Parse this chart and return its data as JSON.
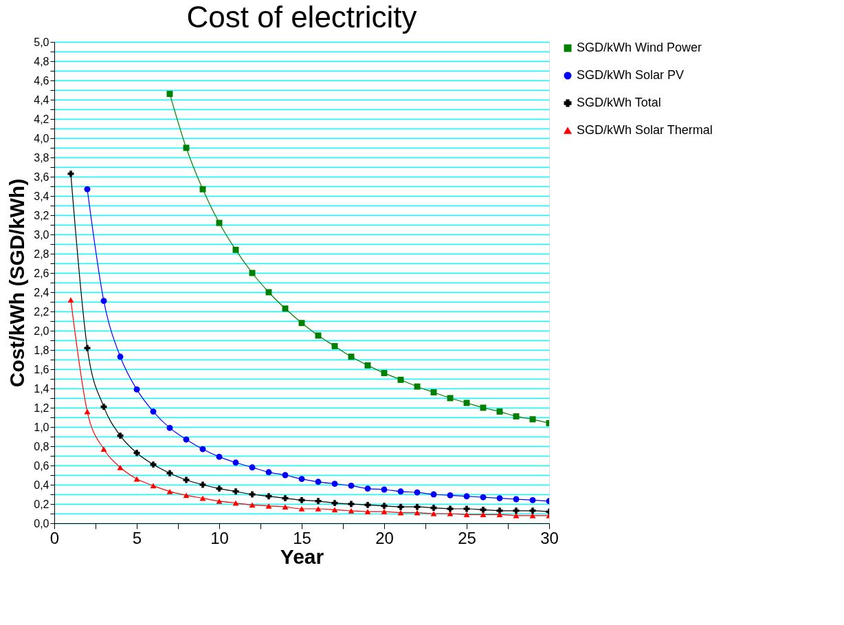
{
  "chart_data": {
    "type": "line",
    "title": "Cost of electricity",
    "xlabel": "Year",
    "ylabel": "Cost/kWh (SGD/kWh)",
    "xlim": [
      0,
      30
    ],
    "xticks": [
      0,
      {
        "value": 2.5,
        "label": null
      },
      5,
      {
        "value": 7.5,
        "label": null
      },
      10,
      {
        "value": 12.5,
        "label": null
      },
      15,
      {
        "value": 17.5,
        "label": null
      },
      20,
      {
        "value": 22.5,
        "label": null
      },
      25,
      {
        "value": 27.5,
        "label": null
      },
      30
    ],
    "ylim": [
      0,
      5
    ],
    "yticks": [
      {
        "value": 0,
        "label": "0,0"
      },
      {
        "value": 0.1,
        "label": null
      },
      {
        "value": 0.2,
        "label": "0,2"
      },
      {
        "value": 0.3,
        "label": null
      },
      {
        "value": 0.4,
        "label": "0,4"
      },
      {
        "value": 0.5,
        "label": null
      },
      {
        "value": 0.6,
        "label": "0,6"
      },
      {
        "value": 0.7,
        "label": null
      },
      {
        "value": 0.8,
        "label": "0,8"
      },
      {
        "value": 0.9,
        "label": null
      },
      {
        "value": 1.0,
        "label": "1,0"
      },
      {
        "value": 1.1,
        "label": null
      },
      {
        "value": 1.2,
        "label": "1,2"
      },
      {
        "value": 1.3,
        "label": null
      },
      {
        "value": 1.4,
        "label": "1,4"
      },
      {
        "value": 1.5,
        "label": null
      },
      {
        "value": 1.6,
        "label": "1,6"
      },
      {
        "value": 1.7,
        "label": null
      },
      {
        "value": 1.8,
        "label": "1,8"
      },
      {
        "value": 1.9,
        "label": null
      },
      {
        "value": 2.0,
        "label": "2,0"
      },
      {
        "value": 2.1,
        "label": null
      },
      {
        "value": 2.2,
        "label": "2,2"
      },
      {
        "value": 2.3,
        "label": null
      },
      {
        "value": 2.4,
        "label": "2,4"
      },
      {
        "value": 2.5,
        "label": null
      },
      {
        "value": 2.6,
        "label": "2,6"
      },
      {
        "value": 2.7,
        "label": null
      },
      {
        "value": 2.8,
        "label": "2,8"
      },
      {
        "value": 2.9,
        "label": null
      },
      {
        "value": 3.0,
        "label": "3,0"
      },
      {
        "value": 3.1,
        "label": null
      },
      {
        "value": 3.2,
        "label": "3,2"
      },
      {
        "value": 3.3,
        "label": null
      },
      {
        "value": 3.4,
        "label": "3,4"
      },
      {
        "value": 3.5,
        "label": null
      },
      {
        "value": 3.6,
        "label": "3,6"
      },
      {
        "value": 3.7,
        "label": null
      },
      {
        "value": 3.8,
        "label": "3,8"
      },
      {
        "value": 3.9,
        "label": null
      },
      {
        "value": 4.0,
        "label": "4,0"
      },
      {
        "value": 4.1,
        "label": null
      },
      {
        "value": 4.2,
        "label": "4,2"
      },
      {
        "value": 4.3,
        "label": null
      },
      {
        "value": 4.4,
        "label": "4,4"
      },
      {
        "value": 4.5,
        "label": null
      },
      {
        "value": 4.6,
        "label": "4,6"
      },
      {
        "value": 4.7,
        "label": null
      },
      {
        "value": 4.8,
        "label": "4,8"
      },
      {
        "value": 4.9,
        "label": null
      },
      {
        "value": 5.0,
        "label": "5,0"
      }
    ],
    "grid": "y",
    "legend": "right",
    "line_style": "solid",
    "series": [
      {
        "name": "SGD/kWh Wind Power",
        "color": "#008000",
        "marker": "square",
        "x": [
          7,
          8,
          9,
          10,
          11,
          12,
          13,
          14,
          15,
          16,
          17,
          18,
          19,
          20,
          21,
          22,
          23,
          24,
          25,
          26,
          27,
          28,
          29,
          30
        ],
        "values": [
          4.46,
          3.9,
          3.47,
          3.12,
          2.84,
          2.6,
          2.4,
          2.23,
          2.08,
          1.95,
          1.84,
          1.73,
          1.64,
          1.56,
          1.49,
          1.42,
          1.36,
          1.3,
          1.25,
          1.2,
          1.16,
          1.11,
          1.08,
          1.04
        ]
      },
      {
        "name": "SGD/kWh Solar PV",
        "color": "#0000ff",
        "marker": "circle",
        "x": [
          2,
          3,
          4,
          5,
          6,
          7,
          8,
          9,
          10,
          11,
          12,
          13,
          14,
          15,
          16,
          17,
          18,
          19,
          20,
          21,
          22,
          23,
          24,
          25,
          26,
          27,
          28,
          29,
          30
        ],
        "values": [
          3.47,
          2.31,
          1.73,
          1.39,
          1.16,
          0.99,
          0.87,
          0.77,
          0.69,
          0.63,
          0.58,
          0.53,
          0.5,
          0.46,
          0.43,
          0.41,
          0.39,
          0.36,
          0.35,
          0.33,
          0.32,
          0.3,
          0.29,
          0.28,
          0.27,
          0.26,
          0.25,
          0.24,
          0.23
        ]
      },
      {
        "name": "SGD/kWh Total",
        "color": "#000000",
        "marker": "cross",
        "x": [
          1,
          2,
          3,
          4,
          5,
          6,
          7,
          8,
          9,
          10,
          11,
          12,
          13,
          14,
          15,
          16,
          17,
          18,
          19,
          20,
          21,
          22,
          23,
          24,
          25,
          26,
          27,
          28,
          29,
          30
        ],
        "values": [
          3.63,
          1.82,
          1.21,
          0.91,
          0.73,
          0.61,
          0.52,
          0.45,
          0.4,
          0.36,
          0.33,
          0.3,
          0.28,
          0.26,
          0.24,
          0.23,
          0.21,
          0.2,
          0.19,
          0.18,
          0.17,
          0.17,
          0.16,
          0.15,
          0.15,
          0.14,
          0.13,
          0.13,
          0.13,
          0.12
        ]
      },
      {
        "name": "SGD/kWh Solar Thermal",
        "color": "#ff0000",
        "marker": "triangle",
        "x": [
          1,
          2,
          3,
          4,
          5,
          6,
          7,
          8,
          9,
          10,
          11,
          12,
          13,
          14,
          15,
          16,
          17,
          18,
          19,
          20,
          21,
          22,
          23,
          24,
          25,
          26,
          27,
          28,
          29,
          30
        ],
        "values": [
          2.32,
          1.16,
          0.77,
          0.58,
          0.46,
          0.39,
          0.33,
          0.29,
          0.26,
          0.23,
          0.21,
          0.19,
          0.18,
          0.17,
          0.15,
          0.15,
          0.14,
          0.13,
          0.12,
          0.12,
          0.11,
          0.11,
          0.1,
          0.1,
          0.09,
          0.09,
          0.09,
          0.08,
          0.08,
          0.08
        ]
      }
    ]
  }
}
